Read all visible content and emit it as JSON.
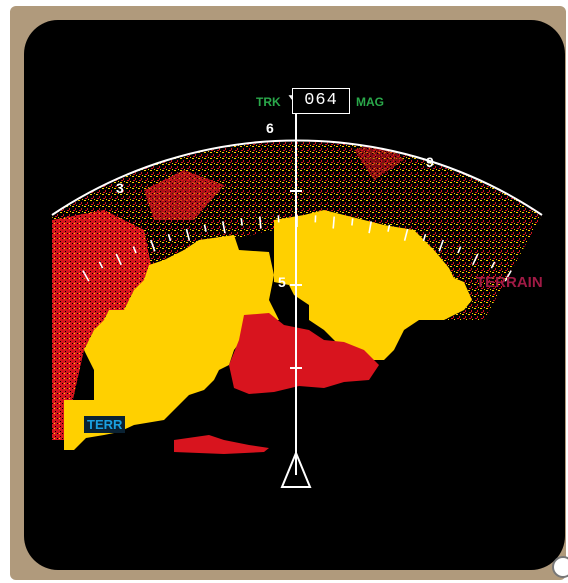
{
  "header": {
    "track_label": "TRK",
    "heading_value": "064",
    "reference_label": "MAG"
  },
  "compass": {
    "labels": [
      "3",
      "6",
      "9"
    ]
  },
  "range_marks": {
    "label": "5"
  },
  "overlays": {
    "terrain_label": "TERRAIN",
    "terr_badge": "TERR"
  },
  "colors": {
    "bezel": "#b09a7c",
    "screen": "#000000",
    "terrain_yellow": "#ffd000",
    "terrain_red": "#d8141e",
    "track_green": "#2aa84a",
    "terrain_magenta": "#a01a45",
    "terr_cyan": "#1aa0e0"
  }
}
